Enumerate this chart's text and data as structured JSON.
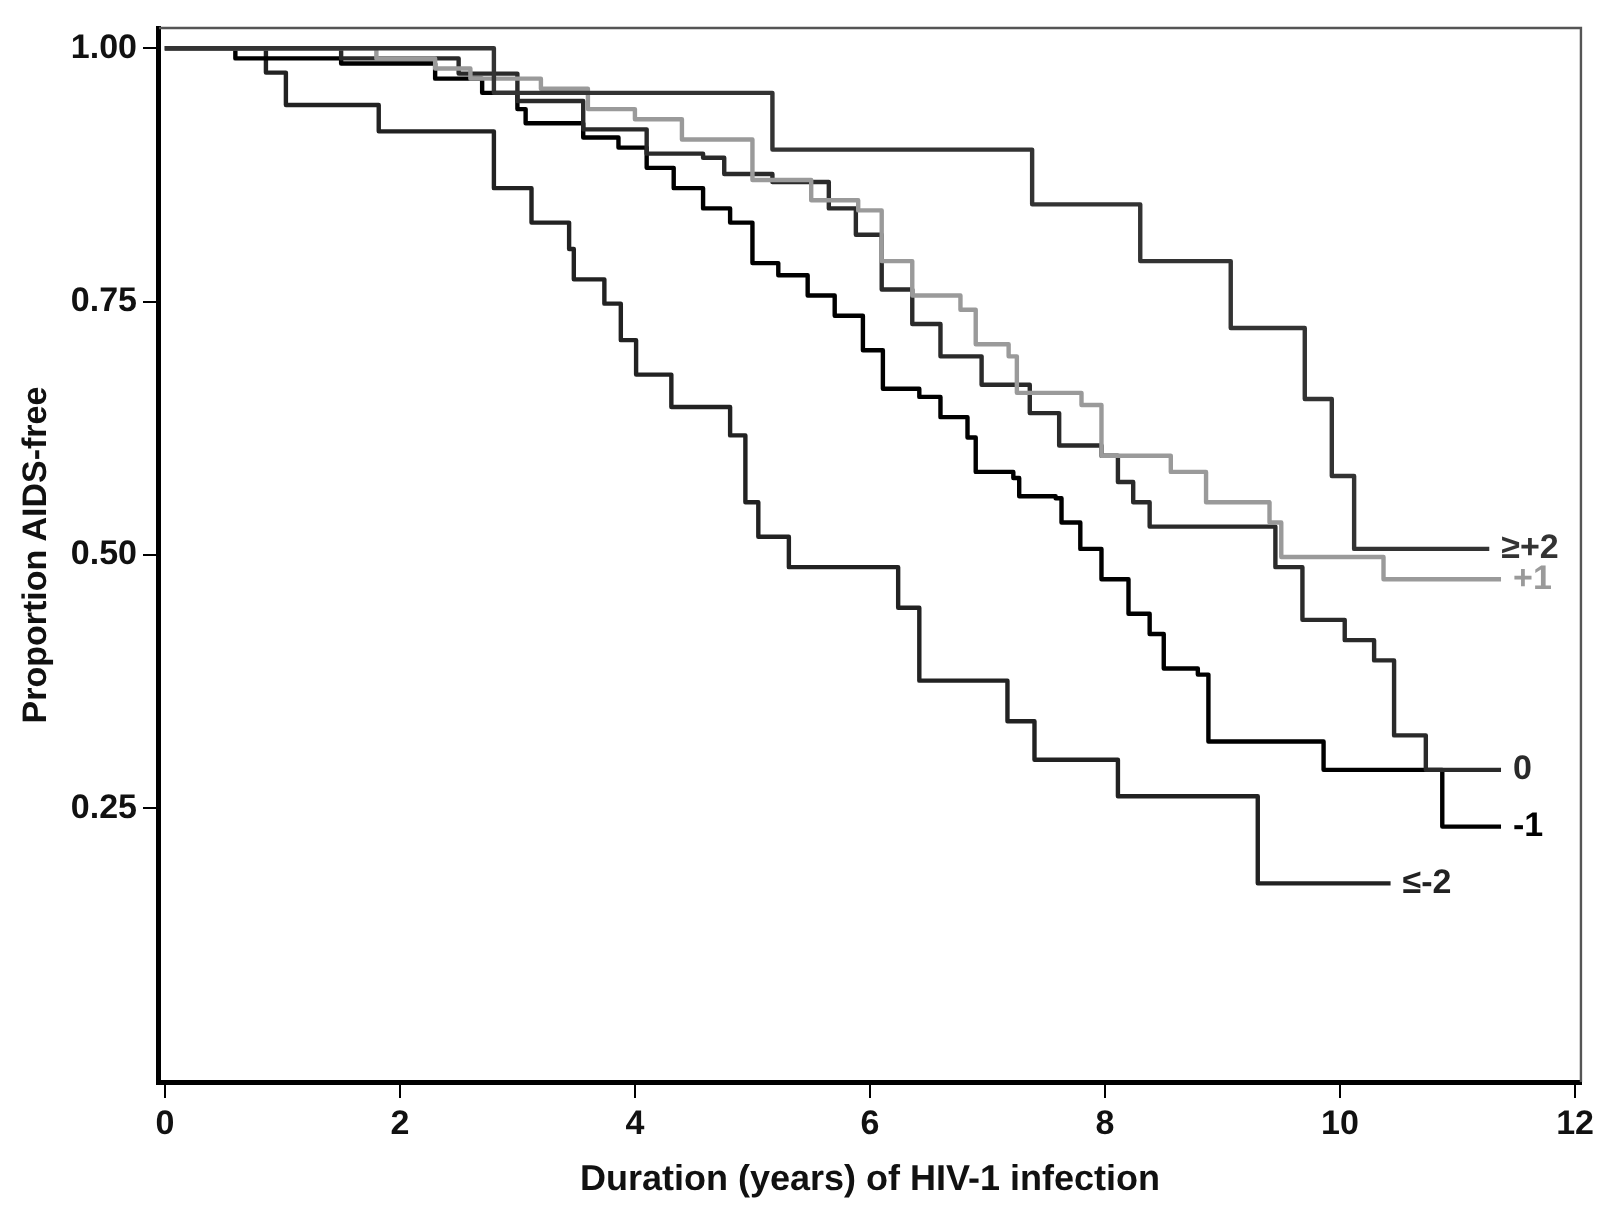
{
  "chart_data": {
    "type": "step",
    "xlabel": "Duration (years) of HIV-1 infection",
    "ylabel": "Proportion AIDS-free",
    "xlim": [
      -0.05,
      12.05
    ],
    "xticks": [
      0,
      2,
      4,
      6,
      8,
      10,
      12
    ],
    "ylim": [
      -0.02,
      1.02
    ],
    "yticks": [
      {
        "value": 0.25,
        "label": "0.25"
      },
      {
        "value": 0.5,
        "label": "0.50"
      },
      {
        "value": 0.75,
        "label": "0.75"
      },
      {
        "value": 1,
        "label": "1.00"
      }
    ],
    "grid": false,
    "legend": false,
    "marker": "none",
    "line_style": "solid",
    "series": [
      {
        "name": "≥+2",
        "color": "#333333",
        "x": [
          0,
          2.8,
          5.17,
          7.38,
          8.3,
          9.07,
          9.7,
          9.93,
          10.12,
          11.27
        ],
        "values": [
          1,
          0.956,
          0.9,
          0.846,
          0.79,
          0.724,
          0.654,
          0.578,
          0.506,
          0.506
        ]
      },
      {
        "name": "+1",
        "color": "#9a9a9a",
        "x": [
          0,
          1.8,
          2.3,
          2.6,
          3.2,
          3.6,
          4.0,
          4.4,
          5.0,
          5.5,
          5.9,
          6.1,
          6.36,
          6.77,
          6.9,
          7.18,
          7.25,
          7.8,
          7.97,
          8.56,
          8.86,
          9.4,
          9.5,
          10.37,
          11.37
        ],
        "values": [
          1,
          0.99,
          0.98,
          0.97,
          0.96,
          0.94,
          0.93,
          0.91,
          0.87,
          0.85,
          0.84,
          0.79,
          0.756,
          0.742,
          0.708,
          0.696,
          0.66,
          0.648,
          0.598,
          0.582,
          0.552,
          0.532,
          0.498,
          0.476,
          0.476
        ]
      },
      {
        "name": "0",
        "color": "#2a2a2a",
        "x": [
          0,
          1.5,
          2.5,
          3.0,
          3.56,
          4.1,
          4.58,
          4.76,
          5.17,
          5.65,
          5.88,
          6.1,
          6.36,
          6.6,
          6.95,
          7.36,
          7.61,
          7.97,
          8.11,
          8.24,
          8.38,
          9.45,
          9.68,
          10.04,
          10.29,
          10.46,
          10.73,
          11.37
        ],
        "values": [
          1,
          0.99,
          0.975,
          0.948,
          0.92,
          0.896,
          0.892,
          0.876,
          0.868,
          0.842,
          0.816,
          0.762,
          0.728,
          0.696,
          0.668,
          0.64,
          0.608,
          0.598,
          0.572,
          0.552,
          0.528,
          0.488,
          0.436,
          0.416,
          0.396,
          0.322,
          0.288,
          0.288
        ]
      },
      {
        "name": "-1",
        "color": "#000000",
        "x": [
          0,
          0.6,
          1.5,
          2.3,
          2.7,
          3.0,
          3.07,
          3.56,
          3.86,
          4.1,
          4.33,
          4.58,
          4.81,
          5.0,
          5.22,
          5.47,
          5.7,
          5.94,
          6.11,
          6.42,
          6.6,
          6.83,
          6.9,
          7.22,
          7.27,
          7.58,
          7.63,
          7.79,
          7.97,
          8.2,
          8.38,
          8.5,
          8.79,
          8.88,
          9.86,
          10.87,
          11.37
        ],
        "values": [
          1,
          0.99,
          0.985,
          0.97,
          0.956,
          0.94,
          0.926,
          0.912,
          0.902,
          0.882,
          0.862,
          0.842,
          0.828,
          0.788,
          0.776,
          0.756,
          0.736,
          0.702,
          0.664,
          0.656,
          0.636,
          0.616,
          0.582,
          0.576,
          0.558,
          0.556,
          0.532,
          0.506,
          0.476,
          0.442,
          0.422,
          0.388,
          0.382,
          0.316,
          0.288,
          0.232,
          0.232
        ]
      },
      {
        "name": "≤-2",
        "color": "#222222",
        "x": [
          0,
          0.86,
          1.03,
          1.82,
          2.8,
          3.12,
          3.44,
          3.48,
          3.74,
          3.88,
          4.01,
          4.31,
          4.81,
          4.94,
          5.05,
          5.31,
          6.24,
          6.42,
          7.17,
          7.4,
          8.11,
          9.3,
          10.43
        ],
        "values": [
          1,
          0.976,
          0.944,
          0.918,
          0.862,
          0.828,
          0.802,
          0.772,
          0.748,
          0.712,
          0.678,
          0.646,
          0.618,
          0.552,
          0.518,
          0.488,
          0.448,
          0.376,
          0.336,
          0.298,
          0.262,
          0.176,
          0.176
        ]
      }
    ]
  }
}
